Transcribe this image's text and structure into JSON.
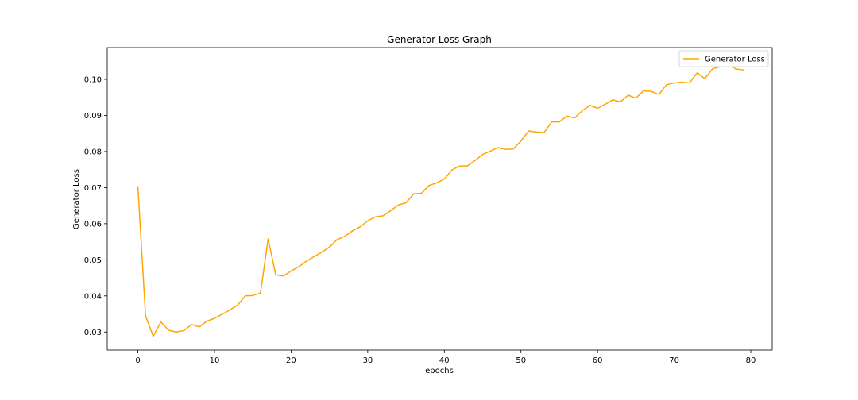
{
  "chart_data": {
    "type": "line",
    "title": "Generator Loss Graph",
    "xlabel": "epochs",
    "ylabel": "Generator Loss",
    "xlim": [
      -4,
      82.8
    ],
    "ylim": [
      0.025,
      0.1088
    ],
    "xticks": [
      0,
      10,
      20,
      30,
      40,
      50,
      60,
      70,
      80
    ],
    "yticks": [
      0.03,
      0.04,
      0.05,
      0.06,
      0.07,
      0.08,
      0.09,
      0.1
    ],
    "ytick_labels": [
      "0.03",
      "0.04",
      "0.05",
      "0.06",
      "0.07",
      "0.08",
      "0.09",
      "0.10"
    ],
    "grid": false,
    "legend_position": "top-right",
    "series": [
      {
        "name": "Generator Loss",
        "color": "#ffa500",
        "x": [
          0,
          1,
          2,
          3,
          4,
          5,
          6,
          7,
          8,
          9,
          10,
          11,
          12,
          13,
          14,
          15,
          16,
          17,
          18,
          19,
          20,
          21,
          22,
          23,
          24,
          25,
          26,
          27,
          28,
          29,
          30,
          31,
          32,
          33,
          34,
          35,
          36,
          37,
          38,
          39,
          40,
          41,
          42,
          43,
          44,
          45,
          46,
          47,
          48,
          49,
          50,
          51,
          52,
          53,
          54,
          55,
          56,
          57,
          58,
          59,
          60,
          61,
          62,
          63,
          64,
          65,
          66,
          67,
          68,
          69,
          70,
          71,
          72,
          73,
          74,
          75,
          76,
          77,
          78,
          79
        ],
        "values": [
          0.0703,
          0.0345,
          0.0288,
          0.0328,
          0.0305,
          0.03,
          0.0304,
          0.0321,
          0.0314,
          0.033,
          0.0338,
          0.0349,
          0.0361,
          0.0374,
          0.04,
          0.0401,
          0.0408,
          0.0558,
          0.0458,
          0.0455,
          0.0469,
          0.0481,
          0.0496,
          0.0509,
          0.0521,
          0.0535,
          0.0556,
          0.0565,
          0.058,
          0.0591,
          0.0608,
          0.0619,
          0.0622,
          0.0636,
          0.0652,
          0.0658,
          0.0683,
          0.0684,
          0.0706,
          0.0713,
          0.0724,
          0.0749,
          0.076,
          0.076,
          0.0775,
          0.0792,
          0.0801,
          0.0811,
          0.0806,
          0.0807,
          0.0829,
          0.0857,
          0.0854,
          0.0852,
          0.0882,
          0.0882,
          0.0898,
          0.0893,
          0.0913,
          0.0928,
          0.092,
          0.0931,
          0.0943,
          0.0938,
          0.0956,
          0.0948,
          0.0968,
          0.0967,
          0.0958,
          0.0985,
          0.099,
          0.0992,
          0.099,
          0.1018,
          0.1002,
          0.1029,
          0.1035,
          0.1046,
          0.1029,
          0.1026
        ]
      }
    ]
  }
}
